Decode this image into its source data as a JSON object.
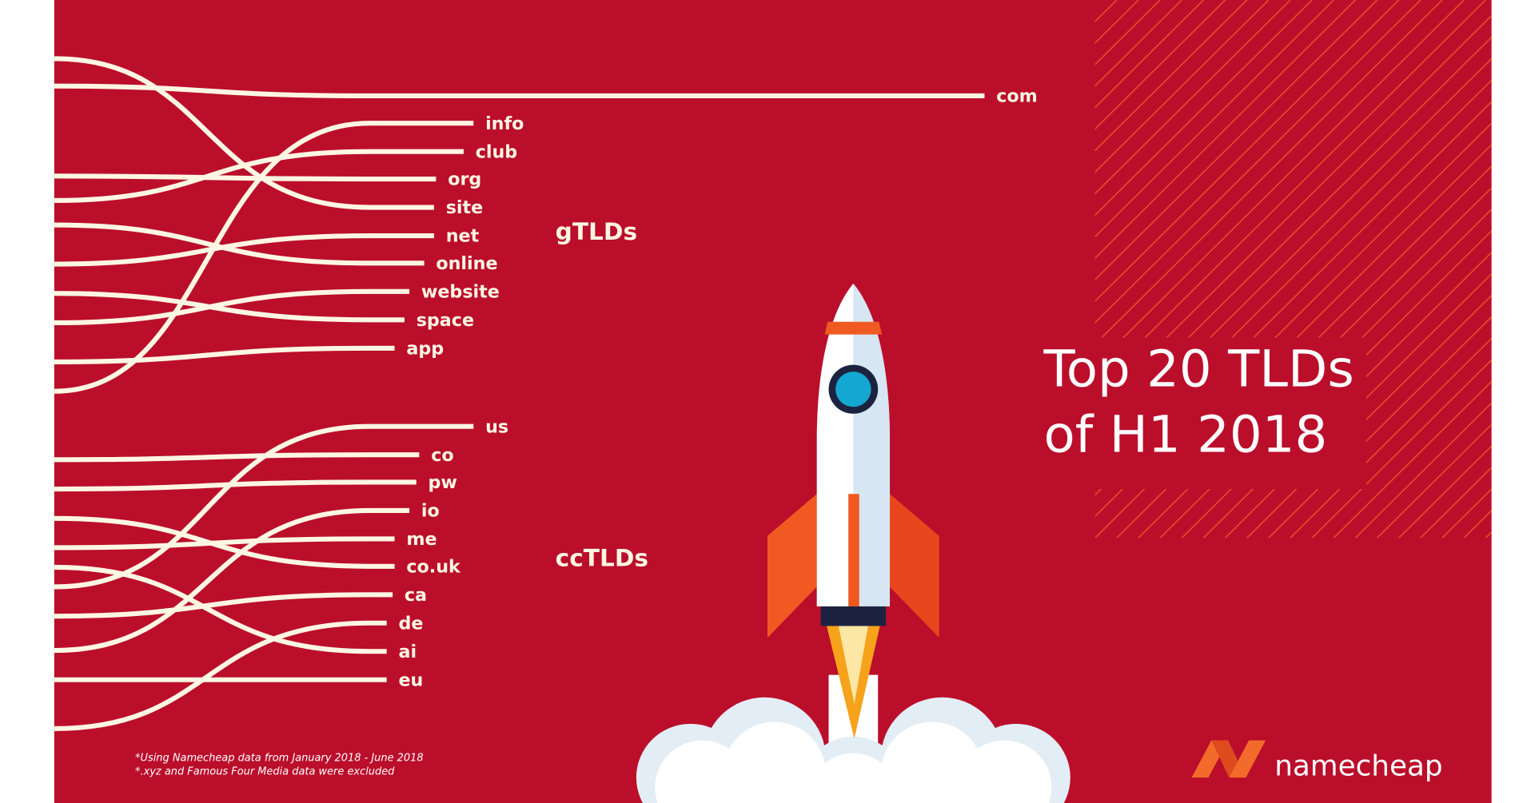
{
  "chart_data": {
    "type": "bar",
    "title": [
      "Top 20 TLDs",
      "of H1 2018"
    ],
    "color": "#fdf6e3",
    "groups": [
      {
        "name": "gTLDs",
        "categories": [
          "com",
          "info",
          "club",
          "org",
          "site",
          "net",
          "online",
          "website",
          "space",
          "app"
        ],
        "values": [
          943,
          425,
          415,
          387,
          385,
          385,
          375,
          360,
          355,
          345
        ]
      },
      {
        "name": "ccTLDs",
        "categories": [
          "us",
          "co",
          "pw",
          "io",
          "me",
          "co.uk",
          "ca",
          "de",
          "ai",
          "eu"
        ],
        "values": [
          425,
          370,
          367,
          360,
          345,
          345,
          343,
          337,
          337,
          337
        ]
      }
    ],
    "notes": [
      "*Using Namecheap data from January 2018 - June 2018",
      "*.xyz and Famous Four Media data were excluded"
    ]
  },
  "brand": "namecheap"
}
